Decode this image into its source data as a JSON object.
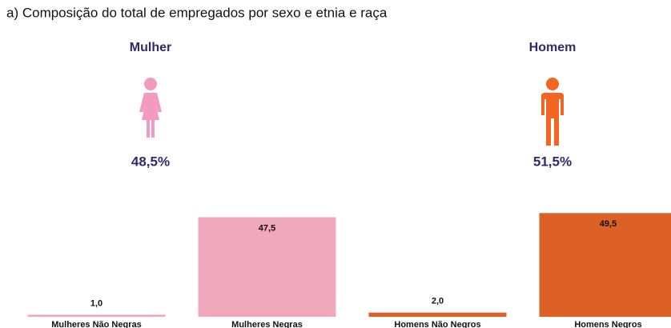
{
  "chart_data": {
    "type": "bar",
    "title": "a) Composição do total de empregados por sexo e etnia e raça",
    "groups": [
      {
        "name": "Mulher",
        "share": "48,5%",
        "color": "#f49ac1"
      },
      {
        "name": "Homem",
        "share": "51,5%",
        "color": "#f26522"
      }
    ],
    "categories": [
      "Mulheres Não Negras",
      "Mulheres Negras",
      "Homens Não Negros",
      "Homens Negros"
    ],
    "values": [
      1.0,
      47.5,
      2.0,
      49.5
    ],
    "value_labels": [
      "1,0",
      "47,5",
      "2,0",
      "49,5"
    ],
    "colors": [
      "#f0a8bc",
      "#f0a8bc",
      "#dd6127",
      "#dd6127"
    ],
    "ylim": [
      0,
      50
    ]
  }
}
